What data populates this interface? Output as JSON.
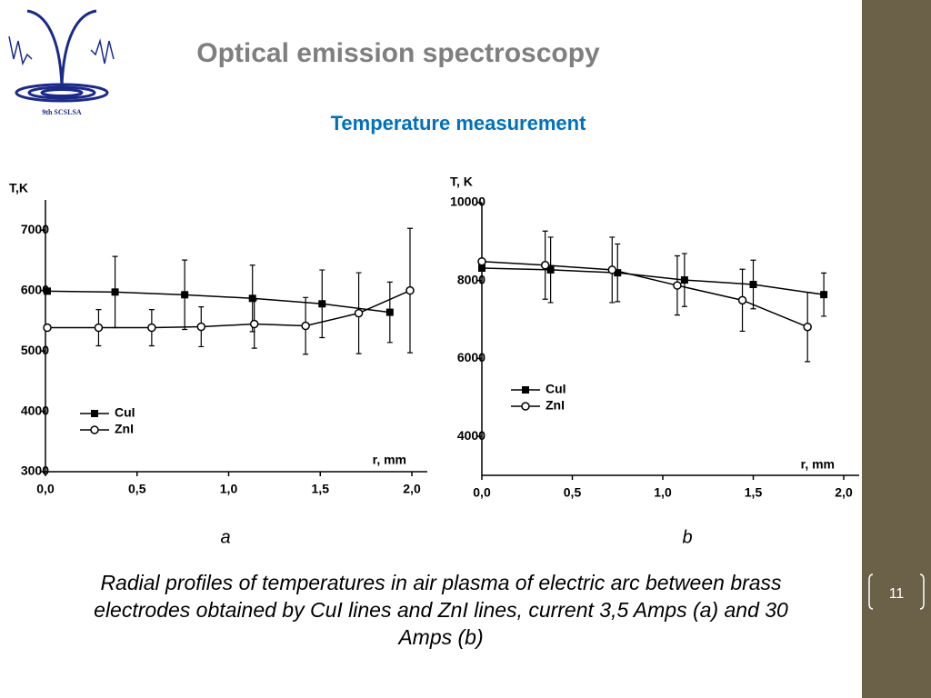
{
  "title": "Optical emission spectroscopy",
  "subtitle": "Temperature measurement",
  "logo_text": "9th SCSLSA",
  "caption": "Radial profiles of temperatures in air plasma of electric arc between brass electrodes obtained by CuI lines and ZnI lines, current 3,5 Amps (a) and 30 Amps (b)",
  "slide_number": "11",
  "chart_data": [
    {
      "type": "line",
      "panel": "a",
      "y_label": "T,K",
      "x_label": "r, mm",
      "xlim": [
        0,
        2.0
      ],
      "xticks": [
        {
          "value": 0,
          "label": "0,0"
        },
        {
          "value": 0.5,
          "label": "0,5"
        },
        {
          "value": 1.0,
          "label": "1,0"
        },
        {
          "value": 1.5,
          "label": "1,5"
        },
        {
          "value": 2.0,
          "label": "2,0"
        }
      ],
      "ylim": [
        3000,
        7500
      ],
      "yticks": [
        3000,
        4000,
        5000,
        6000,
        7000
      ],
      "series": [
        {
          "name": "CuI",
          "color": "#000000",
          "marker": "square",
          "x": [
            0.01,
            0.38,
            0.76,
            1.13,
            1.51,
            1.88
          ],
          "values": [
            5990,
            5975,
            5930,
            5870,
            5780,
            5640
          ],
          "errors": [
            0,
            590,
            575,
            550,
            560,
            500
          ]
        },
        {
          "name": "ZnI",
          "color": "#000000",
          "marker": "circle",
          "x": [
            0.01,
            0.29,
            0.58,
            0.85,
            1.14,
            1.42,
            1.71,
            1.99
          ],
          "values": [
            5385,
            5385,
            5385,
            5400,
            5445,
            5415,
            5625,
            6000
          ],
          "errors": [
            0,
            300,
            300,
            330,
            400,
            470,
            670,
            1030
          ]
        }
      ]
    },
    {
      "type": "line",
      "panel": "b",
      "y_label": "T, K",
      "x_label": "r, mm",
      "xlim": [
        0,
        2.0
      ],
      "xticks": [
        {
          "value": 0,
          "label": "0,0"
        },
        {
          "value": 0.5,
          "label": "0,5"
        },
        {
          "value": 1.0,
          "label": "1,0"
        },
        {
          "value": 1.5,
          "label": "1,5"
        },
        {
          "value": 2.0,
          "label": "2,0"
        }
      ],
      "ylim": [
        3000,
        10000
      ],
      "yticks": [
        4000,
        6000,
        8000,
        10000
      ],
      "series": [
        {
          "name": "CuI",
          "color": "#000000",
          "marker": "square",
          "x": [
            0,
            0.38,
            0.75,
            1.12,
            1.5,
            1.89
          ],
          "values": [
            8320,
            8275,
            8200,
            8015,
            7900,
            7640
          ],
          "errors": [
            0,
            840,
            740,
            680,
            625,
            555
          ]
        },
        {
          "name": "ZnI",
          "color": "#000000",
          "marker": "circle",
          "x": [
            0,
            0.35,
            0.72,
            1.08,
            1.44,
            1.8
          ],
          "values": [
            8490,
            8395,
            8275,
            7875,
            7495,
            6810
          ],
          "errors": [
            0,
            875,
            840,
            760,
            795,
            890
          ]
        }
      ]
    }
  ]
}
